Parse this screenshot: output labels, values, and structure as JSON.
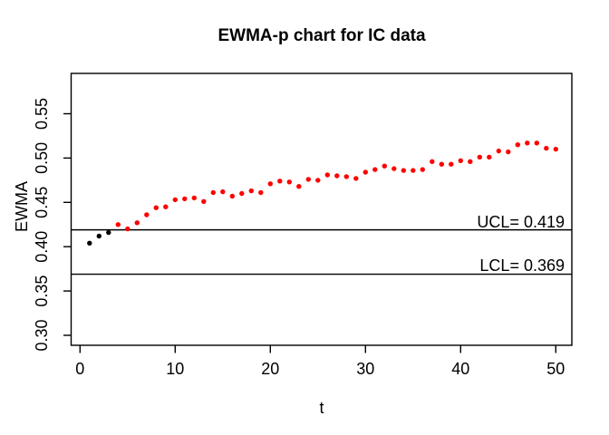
{
  "title": "EWMA-p chart for IC data",
  "axes": {
    "x": {
      "label": "t",
      "tick_labels": [
        "0",
        "10",
        "20",
        "30",
        "40",
        "50"
      ],
      "tick_values": [
        0,
        10,
        20,
        30,
        40,
        50
      ]
    },
    "y": {
      "label": "EWMA",
      "tick_labels": [
        "0.30",
        "0.35",
        "0.40",
        "0.45",
        "0.50",
        "0.55"
      ],
      "tick_values": [
        0.3,
        0.35,
        0.4,
        0.45,
        0.5,
        0.55
      ]
    }
  },
  "control_limits": {
    "ucl": {
      "value": 0.419,
      "label": "UCL= 0.419"
    },
    "lcl": {
      "value": 0.369,
      "label": "LCL= 0.369"
    }
  },
  "colors": {
    "in_control_point": "#000000",
    "out_of_control_point": "#ff0000",
    "line": "#000000",
    "background": "#ffffff"
  },
  "chart_data": {
    "type": "scatter",
    "title": "EWMA-p chart for IC data",
    "xlabel": "t",
    "ylabel": "EWMA",
    "xlim": [
      -1,
      51.7
    ],
    "ylim": [
      0.289,
      0.596
    ],
    "grid": false,
    "ucl": 0.419,
    "lcl": 0.369,
    "x": [
      1,
      2,
      3,
      4,
      5,
      6,
      7,
      8,
      9,
      10,
      11,
      12,
      13,
      14,
      15,
      16,
      17,
      18,
      19,
      20,
      21,
      22,
      23,
      24,
      25,
      26,
      27,
      28,
      29,
      30,
      31,
      32,
      33,
      34,
      35,
      36,
      37,
      38,
      39,
      40,
      41,
      42,
      43,
      44,
      45,
      46,
      47,
      48,
      49,
      50
    ],
    "values": [
      0.404,
      0.412,
      0.416,
      0.425,
      0.42,
      0.427,
      0.436,
      0.444,
      0.445,
      0.453,
      0.454,
      0.455,
      0.451,
      0.461,
      0.462,
      0.457,
      0.46,
      0.463,
      0.461,
      0.471,
      0.474,
      0.473,
      0.468,
      0.476,
      0.475,
      0.481,
      0.48,
      0.479,
      0.477,
      0.484,
      0.487,
      0.491,
      0.488,
      0.486,
      0.486,
      0.487,
      0.496,
      0.493,
      0.493,
      0.497,
      0.496,
      0.501,
      0.501,
      0.508,
      0.507,
      0.515,
      0.517,
      0.517,
      0.511,
      0.51
    ],
    "point_colors": [
      "black",
      "black",
      "black",
      "red",
      "red",
      "red",
      "red",
      "red",
      "red",
      "red",
      "red",
      "red",
      "red",
      "red",
      "red",
      "red",
      "red",
      "red",
      "red",
      "red",
      "red",
      "red",
      "red",
      "red",
      "red",
      "red",
      "red",
      "red",
      "red",
      "red",
      "red",
      "red",
      "red",
      "red",
      "red",
      "red",
      "red",
      "red",
      "red",
      "red",
      "red",
      "red",
      "red",
      "red",
      "red",
      "red",
      "red",
      "red",
      "red",
      "red"
    ]
  }
}
